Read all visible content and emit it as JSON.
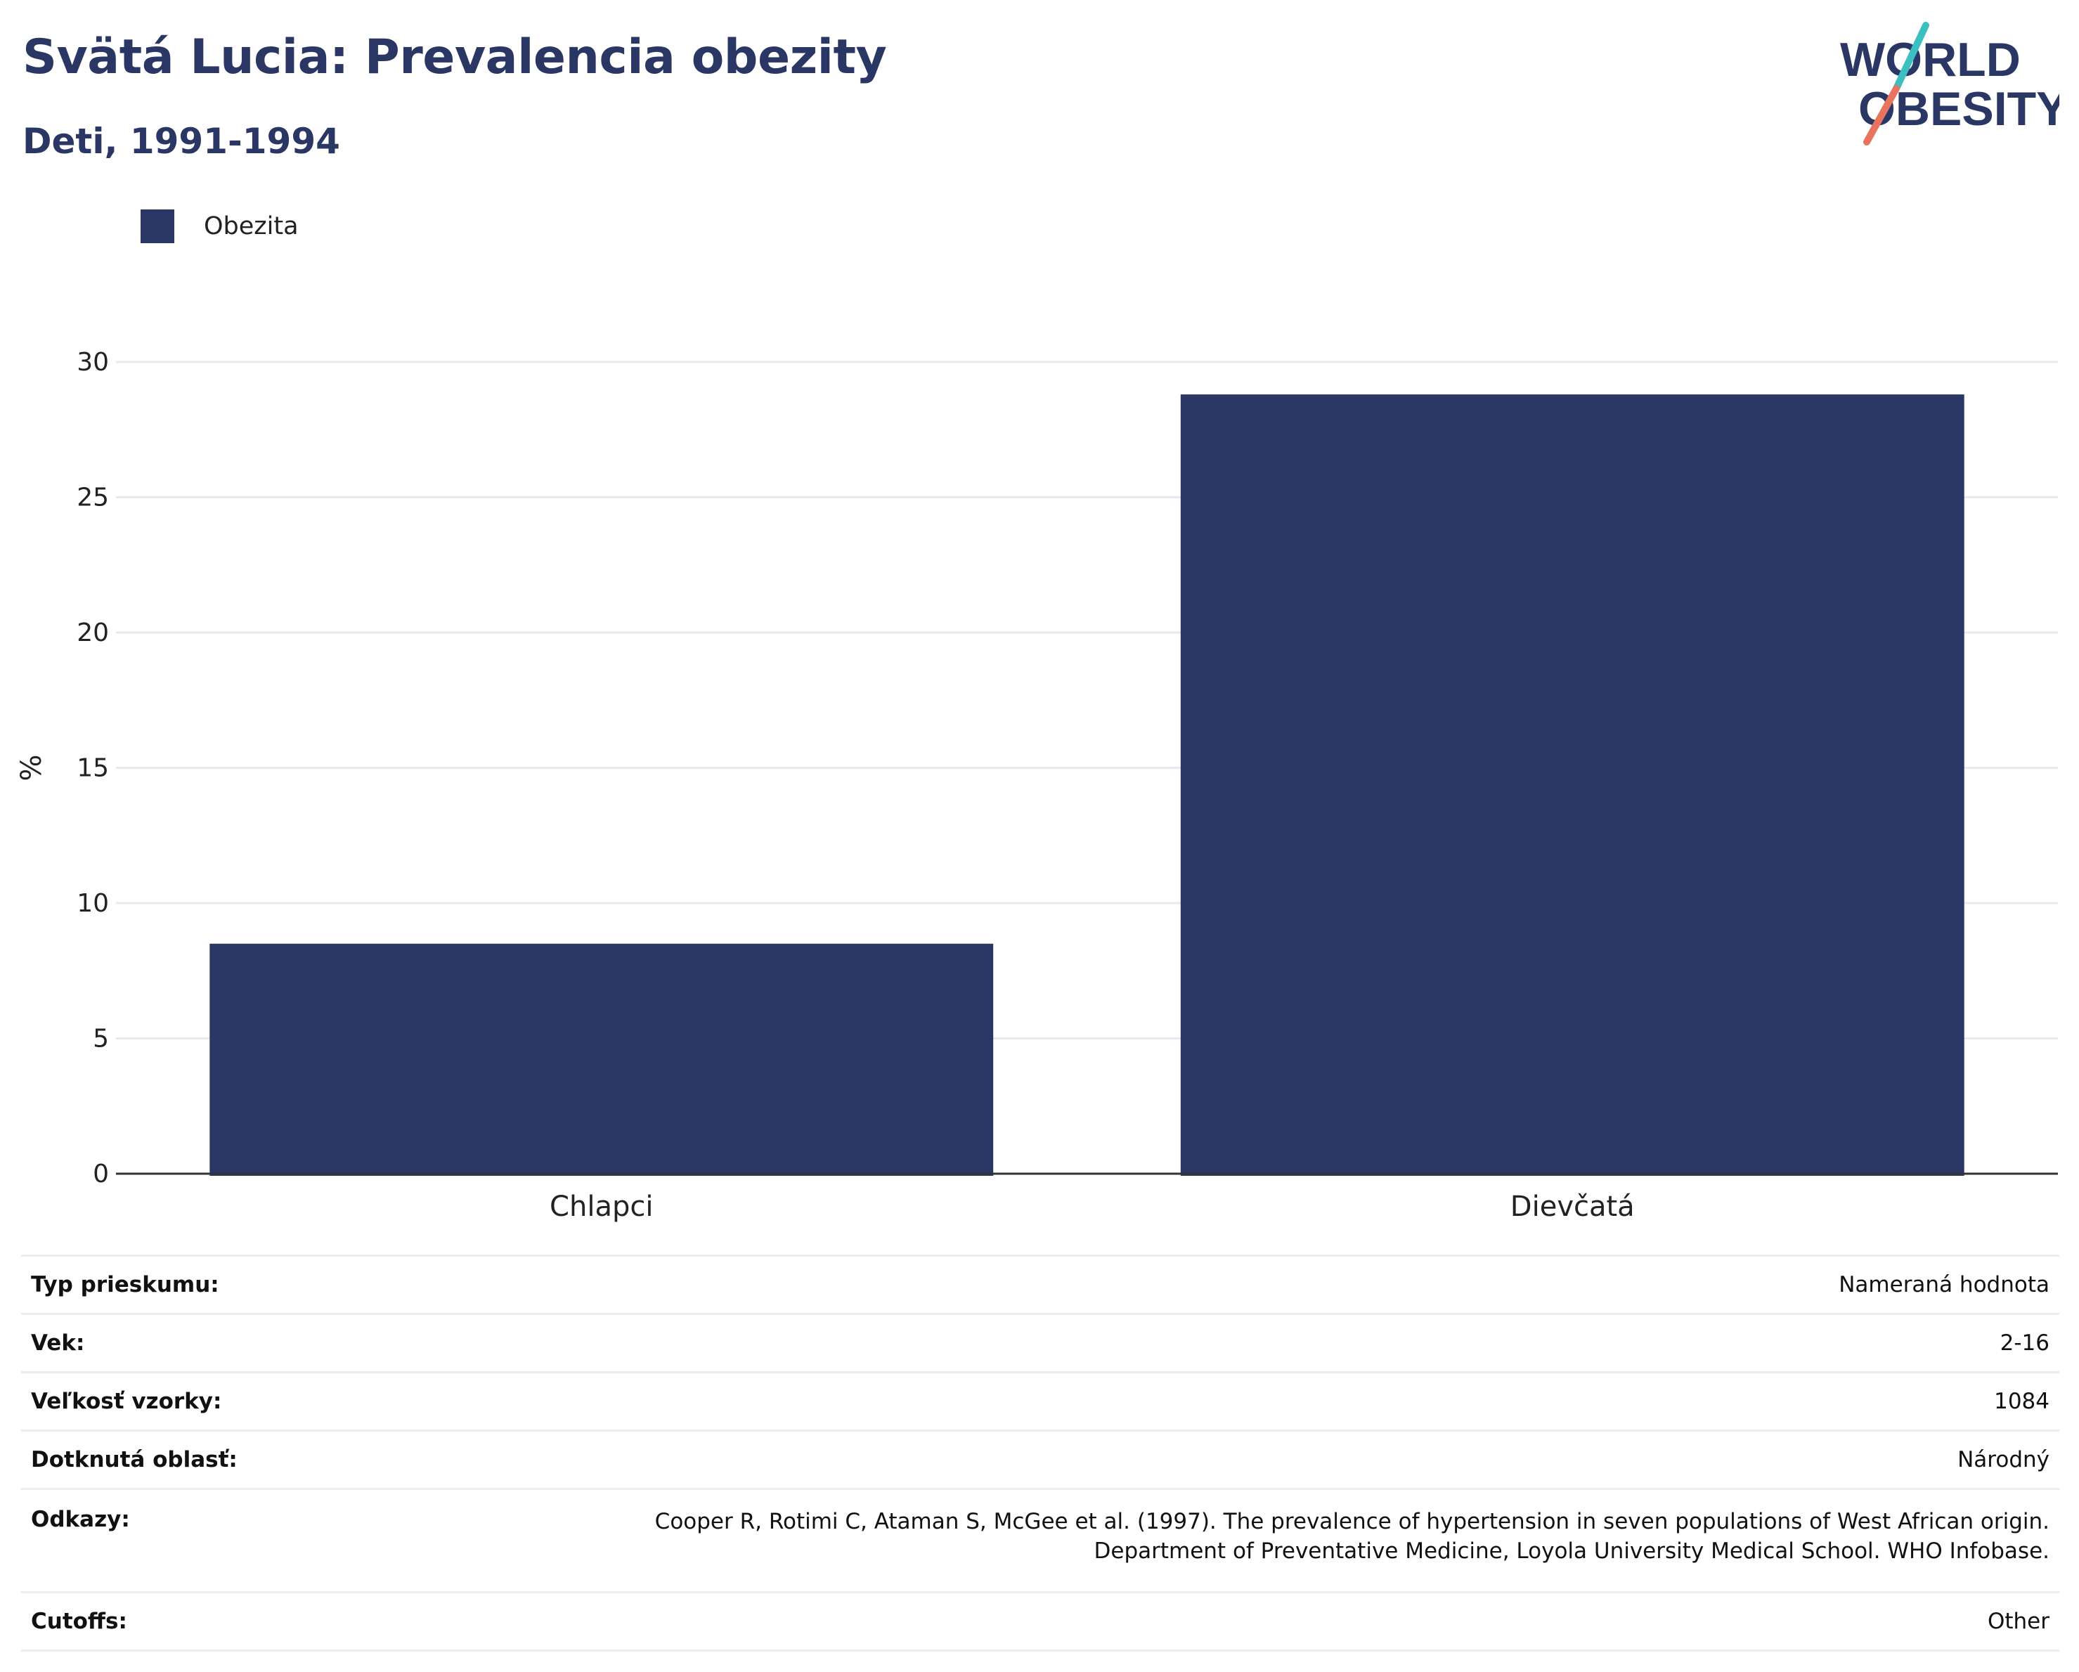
{
  "title": "Svätá Lucia: Prevalencia obezity",
  "subtitle": "Deti, 1991-1994",
  "logo": {
    "line1": "WORLD",
    "line2": "OBESITY"
  },
  "colors": {
    "bar": "#2a3764",
    "text": "#2a3764",
    "grid": "#e6e9ee",
    "logo_teal": "#3bbfc0",
    "logo_coral": "#e8735f"
  },
  "legend": [
    {
      "label": "Obezita",
      "color": "#2a3764"
    }
  ],
  "chart_data": {
    "type": "bar",
    "categories": [
      "Chlapci",
      "Dievčatá"
    ],
    "series": [
      {
        "name": "Obezita",
        "values": [
          8.5,
          28.8
        ]
      }
    ],
    "ylabel": "%",
    "ylim": [
      0,
      30
    ],
    "yticks": [
      0,
      5,
      10,
      15,
      20,
      25,
      30
    ],
    "grid": true,
    "legend_position": "top-left"
  },
  "details": [
    {
      "key": "Typ prieskumu:",
      "value": "Nameraná hodnota"
    },
    {
      "key": "Vek:",
      "value": "2-16"
    },
    {
      "key": "Veľkosť vzorky:",
      "value": "1084"
    },
    {
      "key": "Dotknutá oblasť:",
      "value": "Národný"
    },
    {
      "key": "Odkazy:",
      "value_lines": [
        "Cooper R, Rotimi C, Ataman S, McGee et al. (1997). The prevalence of hypertension in seven populations of West African origin.",
        "Department of Preventative Medicine, Loyola University Medical School. WHO Infobase."
      ]
    },
    {
      "key": "Cutoffs:",
      "value": "Other"
    }
  ]
}
